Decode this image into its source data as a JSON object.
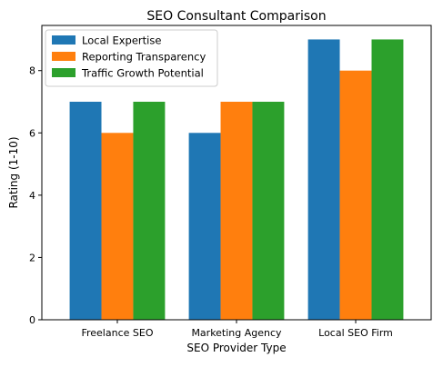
{
  "chart_data": {
    "type": "bar",
    "title": "SEO Consultant Comparison",
    "xlabel": "SEO Provider Type",
    "ylabel": "Rating (1-10)",
    "categories": [
      "Freelance SEO",
      "Marketing Agency",
      "Local SEO Firm"
    ],
    "series": [
      {
        "name": "Local Expertise",
        "color": "#1f77b4",
        "values": [
          7,
          6,
          9
        ]
      },
      {
        "name": "Reporting Transparency",
        "color": "#ff7f0e",
        "values": [
          6,
          7,
          8
        ]
      },
      {
        "name": "Traffic Growth Potential",
        "color": "#2ca02c",
        "values": [
          7,
          7,
          9
        ]
      }
    ],
    "ylim": [
      0,
      9.45
    ],
    "yticks": [
      0,
      2,
      4,
      6,
      8
    ],
    "grid": false,
    "legend_position": "top-left"
  }
}
